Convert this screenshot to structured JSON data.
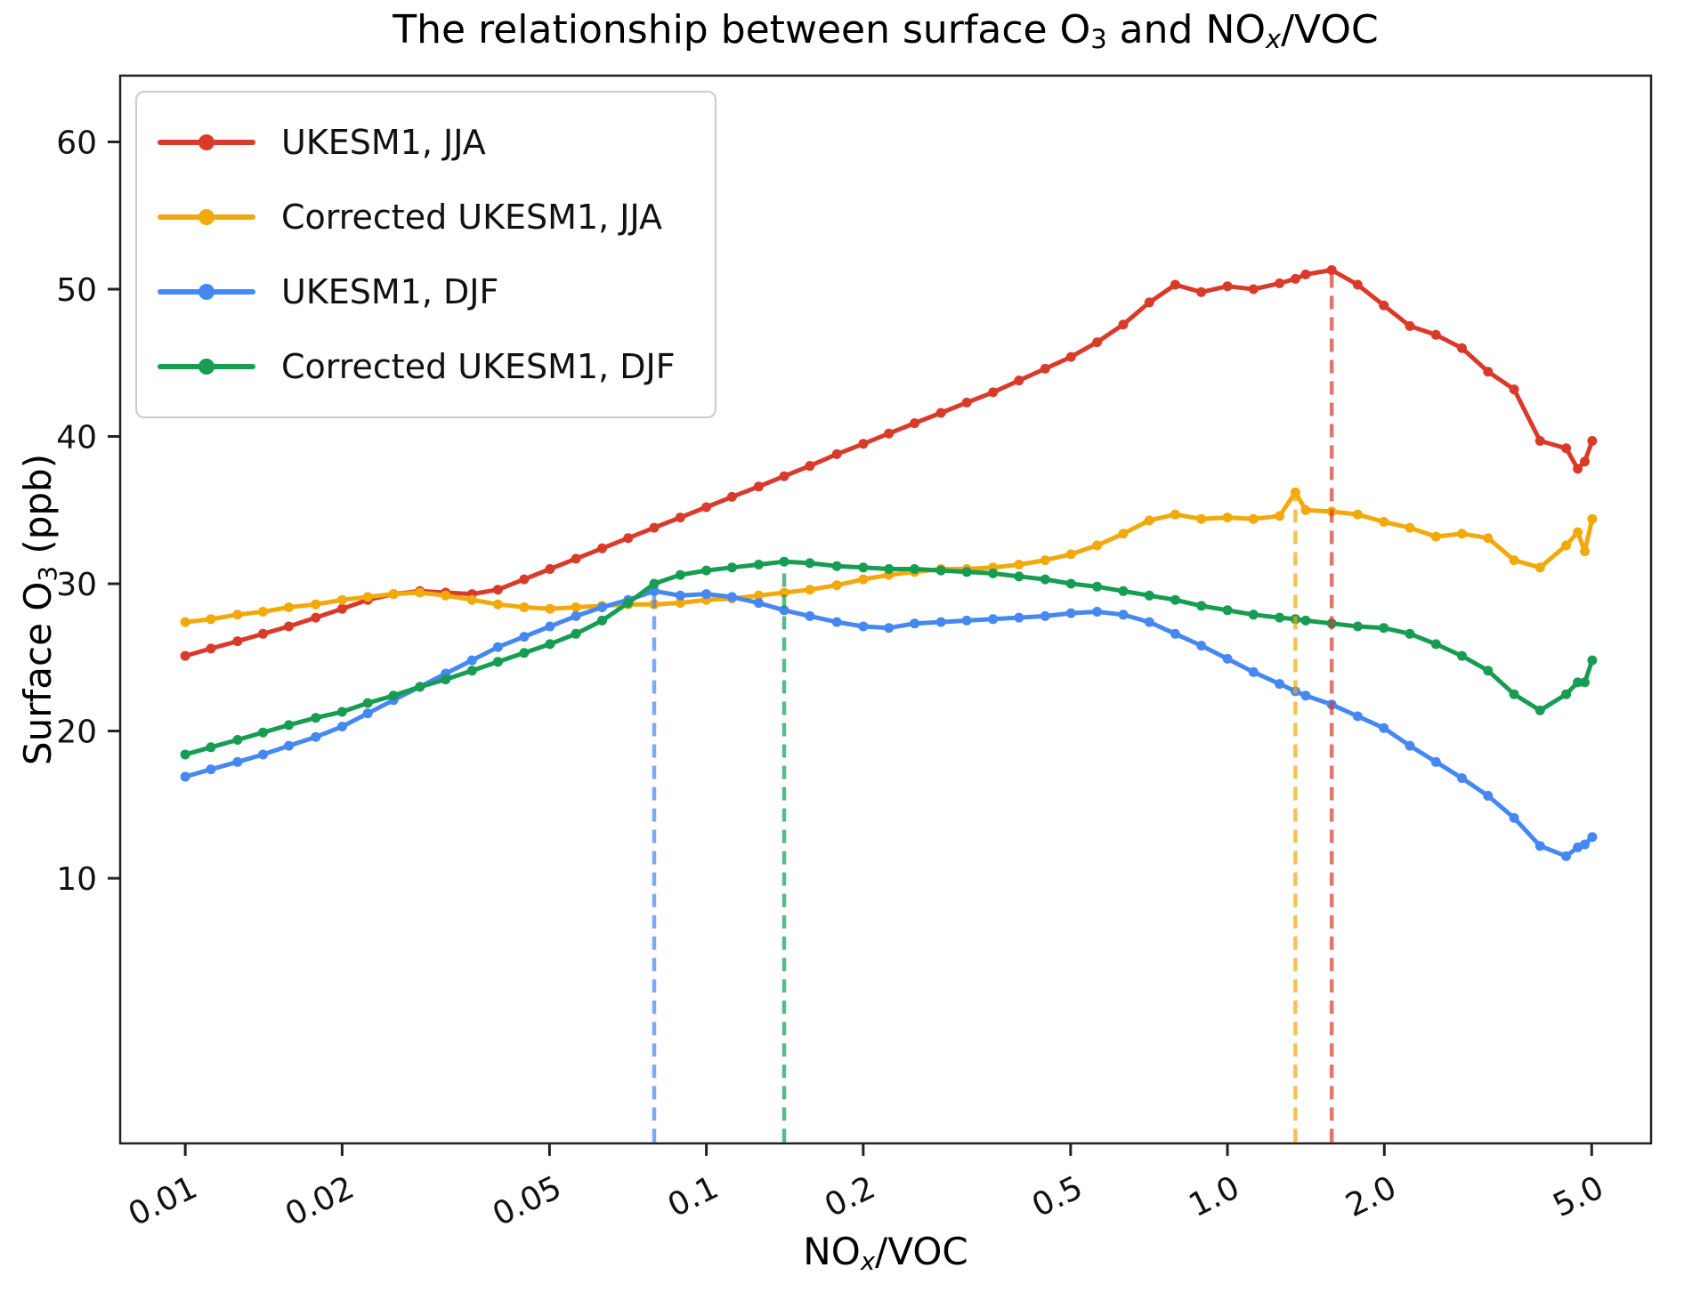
{
  "title": {
    "plain": "The relationship between surface O3 and NOx/VOC",
    "parts": [
      {
        "text": "The relationship between surface O"
      },
      {
        "text": "3",
        "style": "sub"
      },
      {
        "text": " and NO"
      },
      {
        "text": "x",
        "style": "sub-italic"
      },
      {
        "text": "/VOC"
      }
    ]
  },
  "axes": {
    "x_scale": "log",
    "grid": "off",
    "xlim": [
      0.0075,
      6.5
    ],
    "ylim": [
      -8,
      64.5
    ],
    "xlabel_plain": "NOx/VOC",
    "ylabel_plain": "Surface O3 (ppb)",
    "xlabel_parts": [
      {
        "text": "NO"
      },
      {
        "text": "x",
        "style": "sub-italic"
      },
      {
        "text": "/VOC"
      }
    ],
    "ylabel_parts": [
      {
        "text": "Surface O"
      },
      {
        "text": "3",
        "style": "sub"
      },
      {
        "text": " (ppb)"
      }
    ],
    "x_ticks": [
      {
        "value": 0.01,
        "label": "0.01"
      },
      {
        "value": 0.02,
        "label": "0.02"
      },
      {
        "value": 0.05,
        "label": "0.05"
      },
      {
        "value": 0.1,
        "label": "0.1"
      },
      {
        "value": 0.2,
        "label": "0.2"
      },
      {
        "value": 0.5,
        "label": "0.5"
      },
      {
        "value": 1.0,
        "label": "1.0"
      },
      {
        "value": 2.0,
        "label": "2.0"
      },
      {
        "value": 5.0,
        "label": "5.0"
      }
    ],
    "y_ticks": [
      {
        "value": 10,
        "label": "10"
      },
      {
        "value": 20,
        "label": "20"
      },
      {
        "value": 30,
        "label": "30"
      },
      {
        "value": 40,
        "label": "40"
      },
      {
        "value": 50,
        "label": "50"
      },
      {
        "value": 60,
        "label": "60"
      }
    ]
  },
  "legend": {
    "position": "upper left"
  },
  "chart_data": {
    "type": "line",
    "marker": "circle",
    "x": [
      0.01,
      0.0112,
      0.0126,
      0.0141,
      0.0158,
      0.0178,
      0.02,
      0.0224,
      0.0251,
      0.0282,
      0.0316,
      0.0355,
      0.0398,
      0.0447,
      0.0501,
      0.0562,
      0.0631,
      0.0708,
      0.0794,
      0.0891,
      0.1,
      0.112,
      0.126,
      0.141,
      0.158,
      0.178,
      0.2,
      0.224,
      0.251,
      0.282,
      0.316,
      0.355,
      0.398,
      0.447,
      0.501,
      0.562,
      0.631,
      0.708,
      0.794,
      0.891,
      1.0,
      1.122,
      1.259,
      1.35,
      1.413,
      1.585,
      1.778,
      1.995,
      2.239,
      2.512,
      2.818,
      3.162,
      3.548,
      3.981,
      4.467,
      4.7,
      4.85,
      5.012
    ],
    "series": [
      {
        "name": "UKESM1, JJA",
        "color": "#d93b2b",
        "values": [
          25.1,
          25.6,
          26.1,
          26.6,
          27.1,
          27.7,
          28.3,
          28.9,
          29.3,
          29.5,
          29.4,
          29.3,
          29.6,
          30.3,
          31.0,
          31.7,
          32.4,
          33.1,
          33.8,
          34.5,
          35.2,
          35.9,
          36.6,
          37.3,
          38.0,
          38.8,
          39.5,
          40.2,
          40.9,
          41.6,
          42.3,
          43.0,
          43.8,
          44.6,
          45.4,
          46.4,
          47.6,
          49.1,
          50.3,
          49.8,
          50.2,
          50.0,
          50.4,
          50.7,
          51.0,
          51.3,
          50.3,
          48.9,
          47.5,
          46.9,
          46.0,
          44.4,
          43.2,
          39.7,
          39.2,
          37.8,
          38.3,
          39.7
        ]
      },
      {
        "name": "Corrected UKESM1, JJA",
        "color": "#f2a90c",
        "values": [
          27.4,
          27.6,
          27.9,
          28.1,
          28.4,
          28.6,
          28.9,
          29.1,
          29.3,
          29.4,
          29.2,
          28.9,
          28.6,
          28.4,
          28.3,
          28.4,
          28.5,
          28.6,
          28.6,
          28.7,
          28.9,
          29.0,
          29.2,
          29.4,
          29.6,
          29.9,
          30.3,
          30.6,
          30.8,
          31.0,
          31.0,
          31.1,
          31.3,
          31.6,
          32.0,
          32.6,
          33.4,
          34.3,
          34.7,
          34.4,
          34.5,
          34.4,
          34.6,
          36.2,
          35.0,
          34.9,
          34.7,
          34.2,
          33.8,
          33.2,
          33.4,
          33.1,
          31.6,
          31.1,
          32.6,
          33.5,
          32.2,
          34.4
        ]
      },
      {
        "name": "UKESM1, DJF",
        "color": "#4688f1",
        "values": [
          16.9,
          17.4,
          17.9,
          18.4,
          19.0,
          19.6,
          20.3,
          21.2,
          22.1,
          23.0,
          23.9,
          24.8,
          25.7,
          26.4,
          27.1,
          27.8,
          28.4,
          28.9,
          29.5,
          29.2,
          29.3,
          29.1,
          28.7,
          28.2,
          27.8,
          27.4,
          27.1,
          27.0,
          27.3,
          27.4,
          27.5,
          27.6,
          27.7,
          27.8,
          28.0,
          28.1,
          27.9,
          27.4,
          26.6,
          25.8,
          24.9,
          24.0,
          23.2,
          22.7,
          22.4,
          21.8,
          21.0,
          20.2,
          19.0,
          17.9,
          16.8,
          15.6,
          14.1,
          12.2,
          11.5,
          12.1,
          12.3,
          12.8
        ]
      },
      {
        "name": "Corrected UKESM1, DJF",
        "color": "#179c52",
        "values": [
          18.4,
          18.9,
          19.4,
          19.9,
          20.4,
          20.9,
          21.3,
          21.9,
          22.4,
          23.0,
          23.5,
          24.1,
          24.7,
          25.3,
          25.9,
          26.6,
          27.5,
          28.7,
          30.0,
          30.6,
          30.9,
          31.1,
          31.3,
          31.5,
          31.4,
          31.2,
          31.1,
          31.0,
          31.0,
          30.9,
          30.8,
          30.7,
          30.5,
          30.3,
          30.0,
          29.8,
          29.5,
          29.2,
          28.9,
          28.5,
          28.2,
          27.9,
          27.7,
          27.6,
          27.5,
          27.3,
          27.1,
          27.0,
          26.6,
          25.9,
          25.1,
          24.1,
          22.5,
          21.4,
          22.5,
          23.3,
          23.3,
          24.8
        ]
      }
    ],
    "vlines": [
      {
        "x": 0.0794,
        "top": 29.5,
        "color": "#4688f1",
        "style": "dashed",
        "meaning": "max of UKESM1 DJF"
      },
      {
        "x": 0.141,
        "top": 31.5,
        "color": "#179c52",
        "style": "dashed",
        "meaning": "max of Corrected UKESM1 DJF"
      },
      {
        "x": 1.35,
        "top": 36.2,
        "color": "#f2a90c",
        "style": "dashed",
        "meaning": "max of Corrected UKESM1 JJA"
      },
      {
        "x": 1.585,
        "top": 51.3,
        "color": "#d93b2b",
        "style": "dashed",
        "meaning": "max of UKESM1 JJA"
      }
    ]
  }
}
